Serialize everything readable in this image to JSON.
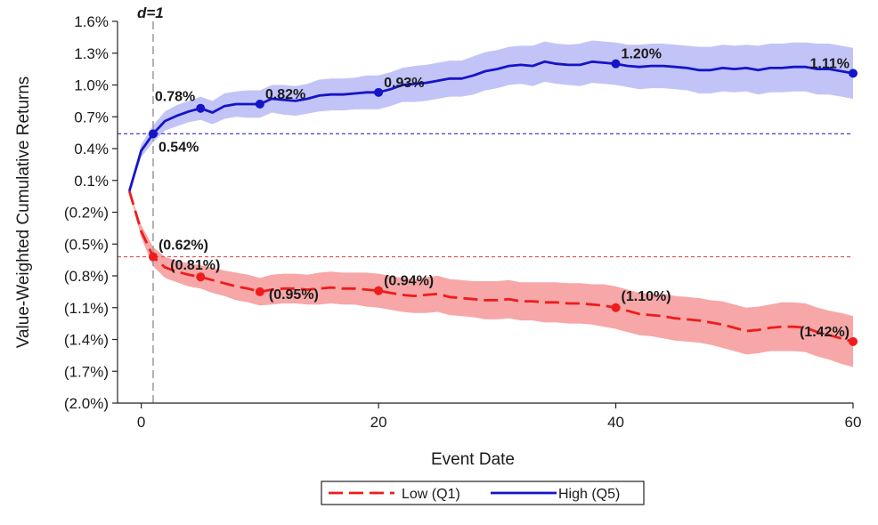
{
  "chart_data": {
    "type": "line",
    "title": "",
    "xlabel": "Event Date",
    "ylabel": "Value-Weighted Cumulative Returns",
    "xlim": [
      -2,
      60
    ],
    "ylim": [
      -2.0,
      1.6
    ],
    "x_ticks": [
      0,
      20,
      40,
      60
    ],
    "y_ticks": [
      {
        "value": 1.6,
        "label": "1.6%"
      },
      {
        "value": 1.3,
        "label": "1.3%"
      },
      {
        "value": 1.0,
        "label": "1.0%"
      },
      {
        "value": 0.7,
        "label": "0.7%"
      },
      {
        "value": 0.4,
        "label": "0.4%"
      },
      {
        "value": 0.1,
        "label": "0.1%"
      },
      {
        "value": -0.2,
        "label": "(0.2%)"
      },
      {
        "value": -0.5,
        "label": "(0.5%)"
      },
      {
        "value": -0.8,
        "label": "(0.8%)"
      },
      {
        "value": -1.1,
        "label": "(1.1%)"
      },
      {
        "value": -1.4,
        "label": "(1.4%)"
      },
      {
        "value": -1.7,
        "label": "(1.7%)"
      },
      {
        "value": -2.0,
        "label": "(2.0%)"
      }
    ],
    "vertical_line": {
      "x": 1,
      "label": "d=1",
      "color": "#999999"
    },
    "reference_lines": [
      {
        "y": 0.54,
        "color": "#2a2ad8"
      },
      {
        "y": -0.62,
        "color": "#e05050"
      }
    ],
    "series": [
      {
        "name": "Low (Q1)",
        "color": "#ee1c1c",
        "band_color": "#f7a7a7",
        "style": "dashed",
        "x": [
          -1,
          0,
          1,
          2,
          3,
          4,
          5,
          6,
          7,
          8,
          9,
          10,
          11,
          12,
          13,
          14,
          15,
          16,
          17,
          18,
          19,
          20,
          21,
          22,
          23,
          24,
          25,
          26,
          27,
          28,
          29,
          30,
          31,
          32,
          33,
          34,
          35,
          36,
          37,
          38,
          39,
          40,
          41,
          42,
          43,
          44,
          45,
          46,
          47,
          48,
          49,
          50,
          51,
          52,
          53,
          54,
          55,
          56,
          57,
          58,
          59,
          60
        ],
        "values": [
          0.0,
          -0.38,
          -0.62,
          -0.72,
          -0.76,
          -0.79,
          -0.81,
          -0.84,
          -0.87,
          -0.9,
          -0.92,
          -0.95,
          -0.93,
          -0.92,
          -0.92,
          -0.93,
          -0.92,
          -0.91,
          -0.92,
          -0.92,
          -0.93,
          -0.94,
          -0.96,
          -0.98,
          -0.99,
          -0.98,
          -0.97,
          -1.0,
          -1.01,
          -1.02,
          -1.03,
          -1.03,
          -1.02,
          -1.04,
          -1.04,
          -1.05,
          -1.05,
          -1.06,
          -1.06,
          -1.07,
          -1.08,
          -1.1,
          -1.13,
          -1.16,
          -1.17,
          -1.18,
          -1.2,
          -1.21,
          -1.22,
          -1.24,
          -1.26,
          -1.29,
          -1.32,
          -1.31,
          -1.29,
          -1.28,
          -1.28,
          -1.29,
          -1.33,
          -1.36,
          -1.39,
          -1.42
        ],
        "band_halfwidth": [
          0.0,
          0.06,
          0.09,
          0.1,
          0.1,
          0.11,
          0.11,
          0.12,
          0.12,
          0.13,
          0.13,
          0.13,
          0.14,
          0.14,
          0.14,
          0.14,
          0.15,
          0.15,
          0.15,
          0.15,
          0.16,
          0.16,
          0.16,
          0.16,
          0.16,
          0.17,
          0.17,
          0.17,
          0.17,
          0.17,
          0.18,
          0.18,
          0.18,
          0.18,
          0.18,
          0.19,
          0.19,
          0.19,
          0.19,
          0.19,
          0.2,
          0.2,
          0.2,
          0.2,
          0.2,
          0.21,
          0.21,
          0.21,
          0.21,
          0.21,
          0.22,
          0.22,
          0.22,
          0.22,
          0.22,
          0.23,
          0.23,
          0.23,
          0.23,
          0.23,
          0.24,
          0.24
        ],
        "markers": [
          {
            "x": 1,
            "value": -0.62,
            "label": "(0.62%)"
          },
          {
            "x": 5,
            "value": -0.81,
            "label": "(0.81%)"
          },
          {
            "x": 10,
            "value": -0.95,
            "label": "(0.95%)"
          },
          {
            "x": 20,
            "value": -0.94,
            "label": "(0.94%)"
          },
          {
            "x": 40,
            "value": -1.1,
            "label": "(1.10%)"
          },
          {
            "x": 60,
            "value": -1.42,
            "label": "(1.42%)"
          }
        ]
      },
      {
        "name": "High (Q5)",
        "color": "#1515c8",
        "band_color": "#c2c4f7",
        "style": "solid",
        "x": [
          -1,
          0,
          1,
          2,
          3,
          4,
          5,
          6,
          7,
          8,
          9,
          10,
          11,
          12,
          13,
          14,
          15,
          16,
          17,
          18,
          19,
          20,
          21,
          22,
          23,
          24,
          25,
          26,
          27,
          28,
          29,
          30,
          31,
          32,
          33,
          34,
          35,
          36,
          37,
          38,
          39,
          40,
          41,
          42,
          43,
          44,
          45,
          46,
          47,
          48,
          49,
          50,
          51,
          52,
          53,
          54,
          55,
          56,
          57,
          58,
          59,
          60
        ],
        "values": [
          0.0,
          0.38,
          0.54,
          0.66,
          0.71,
          0.75,
          0.78,
          0.74,
          0.8,
          0.82,
          0.82,
          0.82,
          0.87,
          0.86,
          0.85,
          0.87,
          0.9,
          0.91,
          0.91,
          0.92,
          0.93,
          0.93,
          0.96,
          1.0,
          1.01,
          1.02,
          1.04,
          1.06,
          1.06,
          1.09,
          1.13,
          1.15,
          1.18,
          1.19,
          1.18,
          1.22,
          1.2,
          1.19,
          1.19,
          1.22,
          1.21,
          1.2,
          1.18,
          1.17,
          1.18,
          1.18,
          1.17,
          1.16,
          1.14,
          1.14,
          1.16,
          1.15,
          1.16,
          1.14,
          1.16,
          1.16,
          1.17,
          1.17,
          1.15,
          1.15,
          1.13,
          1.11
        ],
        "band_halfwidth": [
          0.0,
          0.06,
          0.08,
          0.09,
          0.1,
          0.1,
          0.11,
          0.11,
          0.12,
          0.12,
          0.13,
          0.13,
          0.13,
          0.14,
          0.14,
          0.14,
          0.15,
          0.15,
          0.15,
          0.15,
          0.16,
          0.16,
          0.16,
          0.16,
          0.17,
          0.17,
          0.17,
          0.17,
          0.17,
          0.18,
          0.18,
          0.18,
          0.18,
          0.18,
          0.19,
          0.19,
          0.19,
          0.19,
          0.2,
          0.2,
          0.2,
          0.2,
          0.2,
          0.21,
          0.21,
          0.21,
          0.21,
          0.21,
          0.22,
          0.22,
          0.22,
          0.22,
          0.22,
          0.23,
          0.23,
          0.23,
          0.23,
          0.23,
          0.24,
          0.24,
          0.24,
          0.24
        ],
        "markers": [
          {
            "x": 1,
            "value": 0.54,
            "label": "0.54%"
          },
          {
            "x": 5,
            "value": 0.78,
            "label": "0.78%"
          },
          {
            "x": 10,
            "value": 0.82,
            "label": "0.82%"
          },
          {
            "x": 20,
            "value": 0.93,
            "label": "0.93%"
          },
          {
            "x": 40,
            "value": 1.2,
            "label": "1.20%"
          },
          {
            "x": 60,
            "value": 1.11,
            "label": "1.11%"
          }
        ]
      }
    ],
    "legend": {
      "position": "bottom-center"
    }
  }
}
